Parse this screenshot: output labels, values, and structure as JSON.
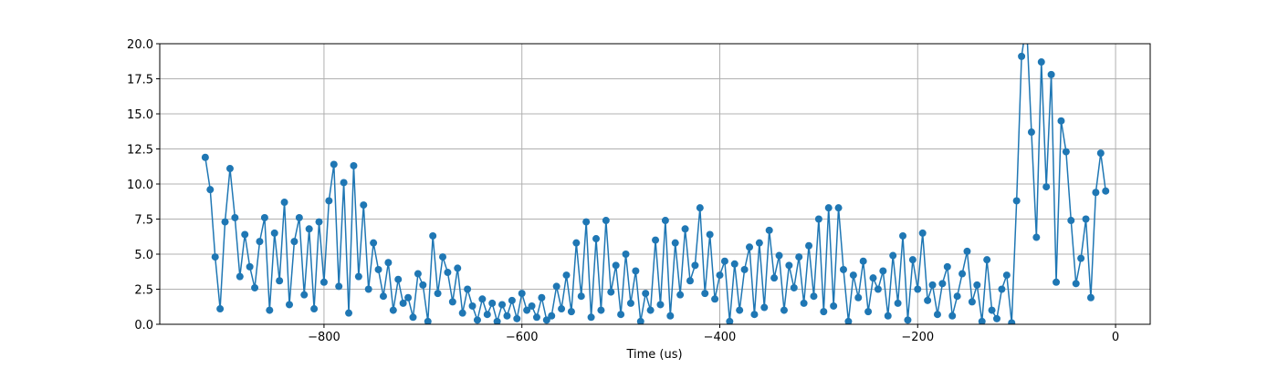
{
  "chart_data": {
    "type": "line",
    "xlabel": "Time (us)",
    "color": "#1f77b4",
    "grid": true,
    "markers": true,
    "x": [
      -920,
      -915,
      -910,
      -905,
      -900,
      -895,
      -890,
      -885,
      -880,
      -875,
      -870,
      -865,
      -860,
      -855,
      -850,
      -845,
      -840,
      -835,
      -830,
      -825,
      -820,
      -815,
      -810,
      -805,
      -800,
      -795,
      -790,
      -785,
      -780,
      -775,
      -770,
      -765,
      -760,
      -755,
      -750,
      -745,
      -740,
      -735,
      -730,
      -725,
      -720,
      -715,
      -710,
      -705,
      -700,
      -695,
      -690,
      -685,
      -680,
      -675,
      -670,
      -665,
      -660,
      -655,
      -650,
      -645,
      -640,
      -635,
      -630,
      -625,
      -620,
      -615,
      -610,
      -605,
      -600,
      -595,
      -590,
      -585,
      -580,
      -575,
      -570,
      -565,
      -560,
      -555,
      -550,
      -545,
      -540,
      -535,
      -530,
      -525,
      -520,
      -515,
      -510,
      -505,
      -500,
      -495,
      -490,
      -485,
      -480,
      -475,
      -470,
      -465,
      -460,
      -455,
      -450,
      -445,
      -440,
      -435,
      -430,
      -425,
      -420,
      -415,
      -410,
      -405,
      -400,
      -395,
      -390,
      -385,
      -380,
      -375,
      -370,
      -365,
      -360,
      -355,
      -350,
      -345,
      -340,
      -335,
      -330,
      -325,
      -320,
      -315,
      -310,
      -305,
      -300,
      -295,
      -290,
      -285,
      -280,
      -275,
      -270,
      -265,
      -260,
      -255,
      -250,
      -245,
      -240,
      -235,
      -230,
      -225,
      -220,
      -215,
      -210,
      -205,
      -200,
      -195,
      -190,
      -185,
      -180,
      -175,
      -170,
      -165,
      -160,
      -155,
      -150,
      -145,
      -140,
      -135,
      -130,
      -125,
      -120,
      -115,
      -110,
      -105,
      -100,
      -95,
      -90,
      -85,
      -80,
      -75,
      -70,
      -65,
      -60,
      -55,
      -50,
      -45,
      -40,
      -35,
      -30,
      -25,
      -20,
      -15,
      -10
    ],
    "values": [
      11.9,
      9.6,
      4.8,
      1.1,
      7.3,
      11.1,
      7.6,
      3.4,
      6.4,
      4.1,
      2.6,
      5.9,
      7.6,
      1.0,
      6.5,
      3.1,
      8.7,
      1.4,
      5.9,
      7.6,
      2.1,
      6.8,
      1.1,
      7.3,
      3.0,
      8.8,
      11.4,
      2.7,
      10.1,
      0.8,
      11.3,
      3.4,
      8.5,
      2.5,
      5.8,
      3.9,
      2.0,
      4.4,
      1.0,
      3.2,
      1.5,
      1.9,
      0.5,
      3.6,
      2.8,
      0.2,
      6.3,
      2.2,
      4.8,
      3.7,
      1.6,
      4.0,
      0.8,
      2.5,
      1.3,
      0.3,
      1.8,
      0.7,
      1.5,
      0.2,
      1.4,
      0.6,
      1.7,
      0.4,
      2.2,
      1.0,
      1.3,
      0.5,
      1.9,
      0.3,
      0.6,
      2.7,
      1.1,
      3.5,
      0.9,
      5.8,
      2.0,
      7.3,
      0.5,
      6.1,
      1.0,
      7.4,
      2.3,
      4.2,
      0.7,
      5.0,
      1.5,
      3.8,
      0.2,
      2.2,
      1.0,
      6.0,
      1.4,
      7.4,
      0.6,
      5.8,
      2.1,
      6.8,
      3.1,
      4.2,
      8.3,
      2.2,
      6.4,
      1.8,
      3.5,
      4.5,
      0.2,
      4.3,
      1.0,
      3.9,
      5.5,
      0.7,
      5.8,
      1.2,
      6.7,
      3.3,
      4.9,
      1.0,
      4.2,
      2.6,
      4.8,
      1.5,
      5.6,
      2.0,
      7.5,
      0.9,
      8.3,
      1.3,
      8.3,
      3.9,
      0.2,
      3.5,
      1.9,
      4.5,
      0.9,
      3.3,
      2.5,
      3.8,
      0.6,
      4.9,
      1.5,
      6.3,
      0.3,
      4.6,
      2.5,
      6.5,
      1.7,
      2.8,
      0.7,
      2.9,
      4.1,
      0.6,
      2.0,
      3.6,
      5.2,
      1.6,
      2.8,
      0.2,
      4.6,
      1.0,
      0.4,
      2.5,
      3.5,
      0.1,
      8.8,
      19.1,
      21.5,
      13.7,
      6.2,
      18.7,
      9.8,
      17.8,
      3.0,
      14.5,
      12.3,
      7.4,
      2.9,
      4.7,
      7.5,
      1.9,
      9.4,
      12.2,
      9.5
    ],
    "xlim": [
      -966,
      35
    ],
    "xticks": [
      {
        "value": -800,
        "label": "−800"
      },
      {
        "value": -600,
        "label": "−600"
      },
      {
        "value": -400,
        "label": "−400"
      },
      {
        "value": -200,
        "label": "−200"
      },
      0
    ],
    "ylim": [
      0,
      20
    ],
    "yticks": [
      {
        "value": 0,
        "label": "0.0"
      },
      {
        "value": 2.5,
        "label": "2.5"
      },
      {
        "value": 5,
        "label": "5.0"
      },
      {
        "value": 7.5,
        "label": "7.5"
      },
      {
        "value": 10,
        "label": "10.0"
      },
      {
        "value": 12.5,
        "label": "12.5"
      },
      {
        "value": 15,
        "label": "15.0"
      },
      {
        "value": 17.5,
        "label": "17.5"
      },
      {
        "value": 20,
        "label": "20.0"
      }
    ]
  }
}
